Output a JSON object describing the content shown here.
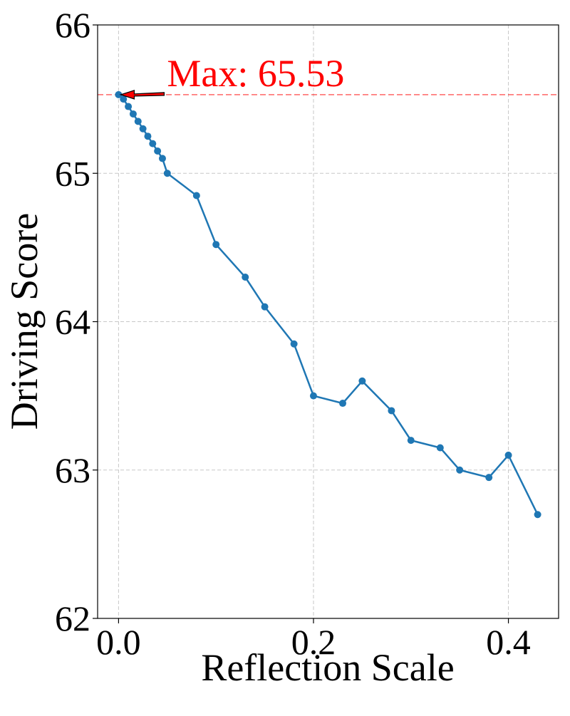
{
  "chart_data": {
    "type": "line",
    "xlabel": "Reflection Scale",
    "ylabel": "Driving Score",
    "annotation": "Max: 65.53",
    "x": [
      0,
      0.005,
      0.01,
      0.015,
      0.02,
      0.025,
      0.03,
      0.035,
      0.04,
      0.045,
      0.05,
      0.08,
      0.1,
      0.13,
      0.15,
      0.18,
      0.2,
      0.23,
      0.25,
      0.28,
      0.3,
      0.33,
      0.35,
      0.38,
      0.4,
      0.43
    ],
    "series": [
      {
        "color": "#1f77b4",
        "values": [
          65.53,
          65.5,
          65.45,
          65.4,
          65.35,
          65.3,
          65.25,
          65.2,
          65.15,
          65.1,
          65.0,
          64.85,
          64.52,
          64.3,
          64.1,
          63.85,
          63.5,
          63.45,
          63.6,
          63.4,
          63.2,
          63.15,
          63.0,
          62.95,
          63.1,
          62.7
        ]
      }
    ],
    "max_line_color": "#ff0000",
    "xlim": [
      -0.0215,
      0.4515
    ],
    "ylim": [
      62,
      66
    ],
    "xticks": [
      {
        "value": 0,
        "label": "0.0"
      },
      {
        "value": 0.2,
        "label": "0.2"
      },
      {
        "value": 0.4,
        "label": "0.4"
      }
    ],
    "yticks": [
      62,
      63,
      64,
      65,
      66
    ],
    "grid": true
  }
}
